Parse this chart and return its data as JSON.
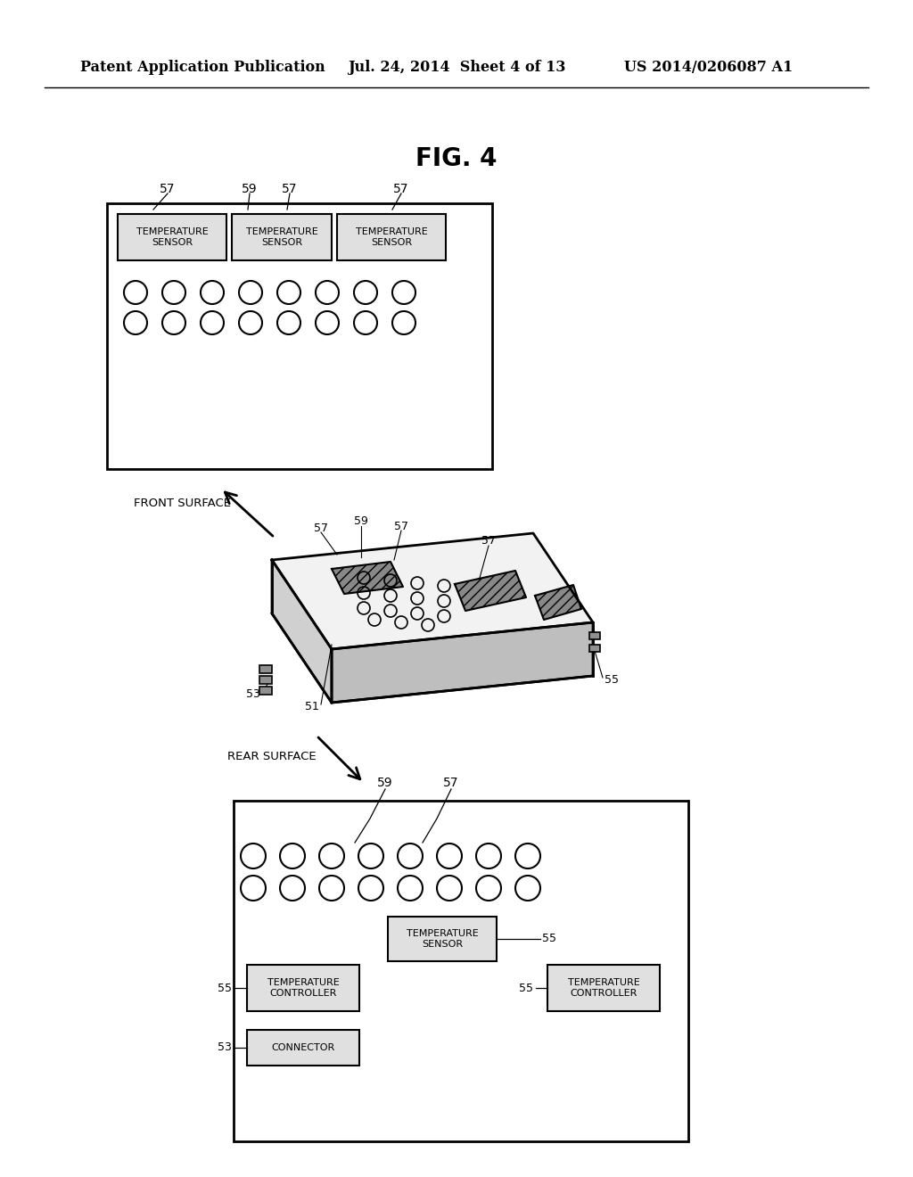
{
  "bg_color": "#ffffff",
  "text_color": "#000000",
  "header_left": "Patent Application Publication",
  "header_mid": "Jul. 24, 2014  Sheet 4 of 13",
  "header_right": "US 2014/0206087 A1",
  "fig_title": "FIG. 4",
  "sensor_label": "TEMPERATURE\nSENSOR",
  "controller_label": "TEMPERATURE\nCONTROLLER",
  "connector_label": "CONNECTOR",
  "front_surface_label": "FRONT SURFACE",
  "rear_surface_label": "REAR SURFACE"
}
